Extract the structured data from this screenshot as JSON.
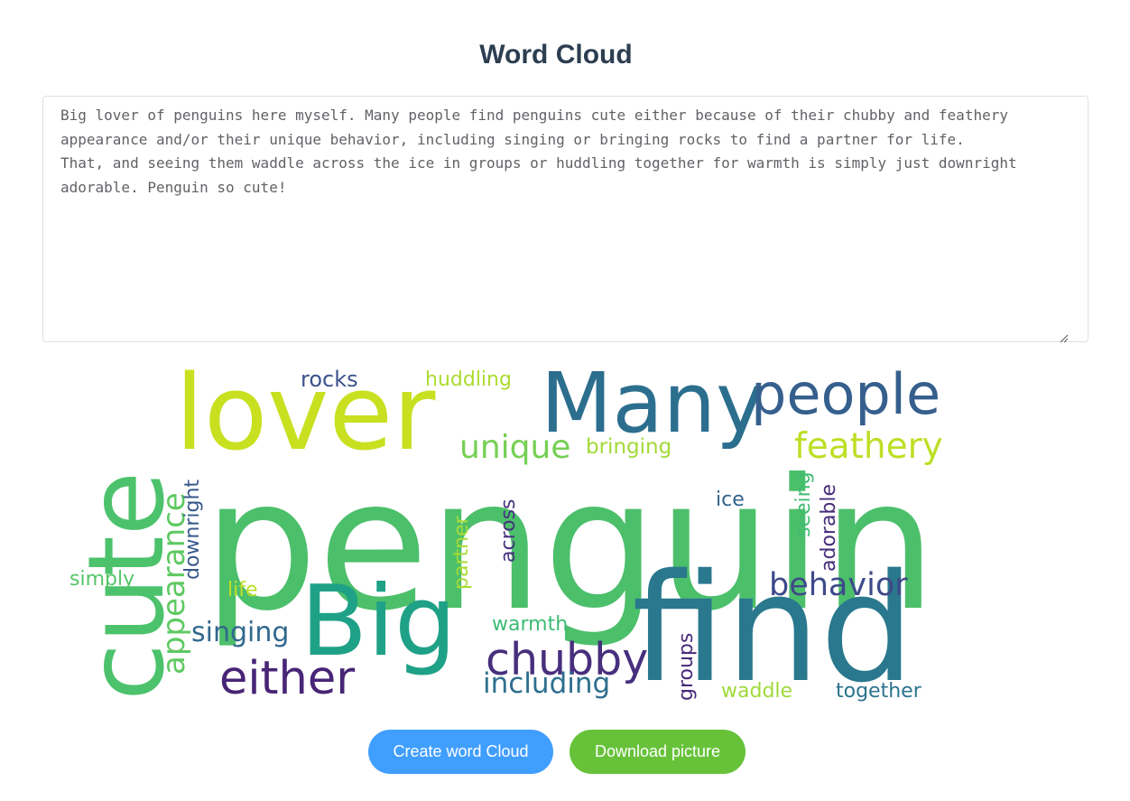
{
  "page": {
    "title": "Word Cloud"
  },
  "input": {
    "text": "Big lover of penguins here myself. Many people find penguins cute either because of their chubby and feathery\nappearance and/or their unique behavior, including singing or bringing rocks to find a partner for life.\nThat, and seeing them waddle across the ice in groups or huddling together for warmth is simply just downright\nadorable. Penguin so cute!"
  },
  "cloud": {
    "words": [
      {
        "text": "penguin",
        "color": "#4cbf6b"
      },
      {
        "text": "cute",
        "color": "#4cc26c"
      },
      {
        "text": "lover",
        "color": "#c8e020"
      },
      {
        "text": "Many",
        "color": "#2c6e8e"
      },
      {
        "text": "people",
        "color": "#355f8d"
      },
      {
        "text": "find",
        "color": "#2a788e"
      },
      {
        "text": "Big",
        "color": "#1fa187"
      },
      {
        "text": "feathery",
        "color": "#bddf26"
      },
      {
        "text": "unique",
        "color": "#75d054"
      },
      {
        "text": "bringing",
        "color": "#a2da37"
      },
      {
        "text": "rocks",
        "color": "#3b528b"
      },
      {
        "text": "huddling",
        "color": "#addc30"
      },
      {
        "text": "chubby",
        "color": "#472f7d"
      },
      {
        "text": "either",
        "color": "#482576"
      },
      {
        "text": "behavior",
        "color": "#3e4989"
      },
      {
        "text": "appearance",
        "color": "#5ec962"
      },
      {
        "text": "singing",
        "color": "#31688e"
      },
      {
        "text": "including",
        "color": "#2e6f8e"
      },
      {
        "text": "downright",
        "color": "#38598c"
      },
      {
        "text": "simply",
        "color": "#54c568"
      },
      {
        "text": "life",
        "color": "#bddf26"
      },
      {
        "text": "partner",
        "color": "#a8db34"
      },
      {
        "text": "across",
        "color": "#46337e"
      },
      {
        "text": "warmth",
        "color": "#3dbc74"
      },
      {
        "text": "ice",
        "color": "#33638d"
      },
      {
        "text": "seeing",
        "color": "#40bd72"
      },
      {
        "text": "adorable",
        "color": "#472d7b"
      },
      {
        "text": "groups",
        "color": "#482979"
      },
      {
        "text": "waddle",
        "color": "#a0da39"
      },
      {
        "text": "together",
        "color": "#2c738e"
      }
    ]
  },
  "buttons": {
    "create_label": "Create word Cloud",
    "download_label": "Download picture"
  }
}
